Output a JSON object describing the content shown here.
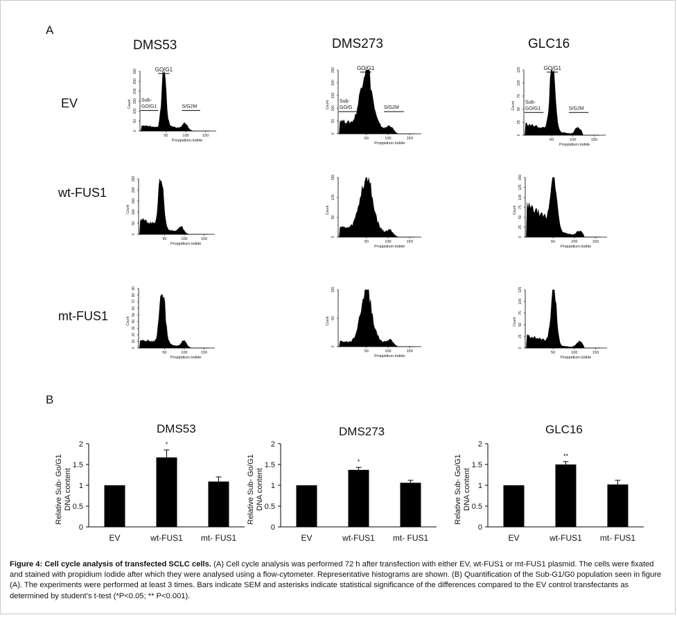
{
  "panels": {
    "a_label": "A",
    "b_label": "B"
  },
  "columns": [
    "DMS53",
    "DMS273",
    "GLC16"
  ],
  "rows": [
    "EV",
    "wt-FUS1",
    "mt-FUS1"
  ],
  "histogram_labels": {
    "y_axis": "Count",
    "x_axis": "Proppidium.Iodide",
    "peak": "GO/G1",
    "sub_line1": "Sub-",
    "sub_line2": "GO/G1",
    "sub_line2_dms273": "GO/G",
    "sg2m": "S/G2M"
  },
  "histograms": [
    {
      "column": "DMS53",
      "row": "EV",
      "yticks": [
        "0",
        "50",
        "100",
        "150",
        "200",
        "250",
        "300"
      ],
      "xticks": [
        "50",
        "100",
        "150"
      ]
    },
    {
      "column": "DMS273",
      "row": "EV",
      "yticks": [
        "0",
        "50",
        "100",
        "150",
        "200",
        "250"
      ],
      "xticks": [
        "50",
        "100",
        "150"
      ]
    },
    {
      "column": "GLC16",
      "row": "EV",
      "yticks": [
        "0",
        "25",
        "50",
        "75",
        "100",
        "125"
      ],
      "xticks": [
        "50",
        "100",
        "150"
      ]
    },
    {
      "column": "DMS53",
      "row": "wt-FUS1",
      "yticks": [
        "0",
        "50",
        "100",
        "150",
        "200",
        "250"
      ],
      "xticks": [
        "50",
        "100",
        "150"
      ]
    },
    {
      "column": "DMS273",
      "row": "wt-FUS1",
      "yticks": [
        "0",
        "50",
        "100",
        "150"
      ],
      "xticks": [
        "50",
        "100",
        "150"
      ]
    },
    {
      "column": "GLC16",
      "row": "wt-FUS1",
      "yticks": [
        "0",
        "25",
        "50",
        "75",
        "100",
        "125",
        "150"
      ],
      "xticks": [
        "50",
        "100",
        "150"
      ]
    },
    {
      "column": "DMS53",
      "row": "mt-FUS1",
      "yticks": [
        "0",
        "10",
        "20",
        "30",
        "40",
        "50",
        "60",
        "70",
        "80",
        "90"
      ],
      "xticks": [
        "50",
        "100",
        "150"
      ]
    },
    {
      "column": "DMS273",
      "row": "mt-FUS1",
      "yticks": [
        "0",
        "50",
        "100"
      ],
      "xticks": [
        "50",
        "100",
        "150"
      ]
    },
    {
      "column": "GLC16",
      "row": "mt-FUS1",
      "yticks": [
        "0",
        "25",
        "50",
        "75",
        "100",
        "125"
      ],
      "xticks": [
        "50",
        "100",
        "150"
      ]
    }
  ],
  "chart_data": [
    {
      "type": "bar",
      "title": "DMS53",
      "categories": [
        "EV",
        "wt-FUS1",
        "mt- FUS1"
      ],
      "values": [
        1.0,
        1.67,
        1.09
      ],
      "errors": [
        0.01,
        0.18,
        0.11
      ],
      "significance": [
        "",
        "*",
        ""
      ],
      "ylabel_line1": "Relative  Sub- Go/G1",
      "ylabel_line2": "DNA content",
      "yticks": [
        "0",
        "0.5",
        "1",
        "1.5",
        "2"
      ],
      "ylim": [
        0,
        2
      ],
      "grid": false
    },
    {
      "type": "bar",
      "title": "DMS273",
      "categories": [
        "EV",
        "wt-FUS1",
        "mt- FUS1"
      ],
      "values": [
        1.0,
        1.37,
        1.06
      ],
      "errors": [
        0.01,
        0.06,
        0.06
      ],
      "significance": [
        "",
        "*",
        ""
      ],
      "ylabel_line1": "Relative  Sub- Go/G1",
      "ylabel_line2": "DNA content",
      "yticks": [
        "0",
        "0.5",
        "1",
        "1.5",
        "2"
      ],
      "ylim": [
        0,
        2
      ],
      "grid": false
    },
    {
      "type": "bar",
      "title": "GLC16",
      "categories": [
        "EV",
        "wt-FUS1",
        "mt- FUS1"
      ],
      "values": [
        1.0,
        1.5,
        1.02
      ],
      "errors": [
        0.01,
        0.07,
        0.1
      ],
      "significance": [
        "",
        "**",
        ""
      ],
      "ylabel_line1": "Relative  Sub- Go/G1",
      "ylabel_line2": "DNA content",
      "yticks": [
        "0",
        "0.5",
        "1",
        "1.5",
        "2"
      ],
      "ylim": [
        0,
        2
      ],
      "grid": false
    }
  ],
  "caption": {
    "bold": "Figure 4: Cell cycle analysis of transfected SCLC cells.",
    "text": " (A) Cell cycle analysis was performed 72 h after transfection with either EV, wt-FUS1 or mt-FUS1 plasmid. The cells were fixated and stained with propidium Iodide after which they were analysed using a flow-cytometer. Representative histograms are shown. (B) Quantification of the Sub-G1/G0 population seen in figure (A). The experiments were performed at least 3 times. Bars indicate SEM and asterisks indicate statistical significance of the differences compared to the EV control transfectants as determined by student’s t-test (*P<0.05; ** P<0.001)."
  },
  "colors": {
    "ink": "#111111",
    "bar": "#000000",
    "frame": "#c8c8c8"
  }
}
